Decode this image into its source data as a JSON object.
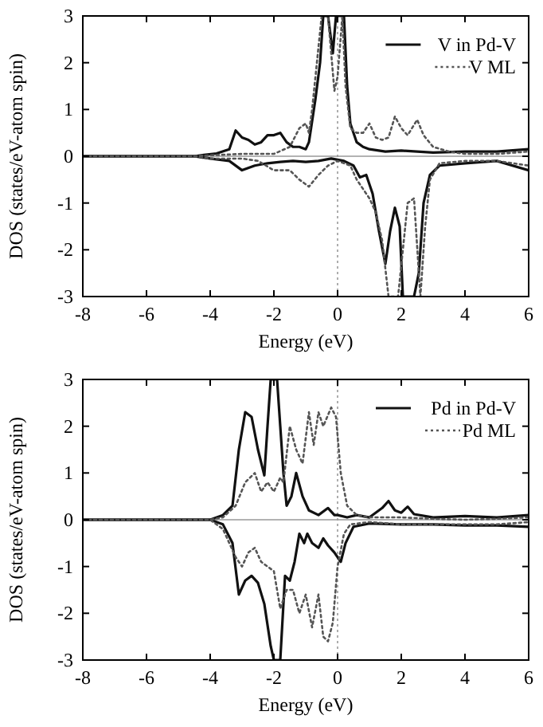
{
  "chart_data": [
    {
      "type": "line",
      "xlabel": "Energy (eV)",
      "ylabel": "DOS (states/eV-atom spin)",
      "xlim": [
        -8,
        6
      ],
      "ylim": [
        -3,
        3
      ],
      "xticks": [
        -8,
        -6,
        -4,
        -2,
        0,
        2,
        4,
        6
      ],
      "yticks": [
        -3,
        -2,
        -1,
        0,
        1,
        2,
        3
      ],
      "legend": "top right",
      "ref_lines": [
        {
          "axis": "x",
          "value": 0,
          "color": "#999999",
          "line_style": "dotted"
        },
        {
          "axis": "y",
          "value": 0,
          "color": "#999999",
          "line_style": "solid"
        }
      ],
      "series": [
        {
          "name": "V in Pd-V",
          "color": "#111111",
          "line_style": "solid",
          "x": [
            -8,
            -4.5,
            -4.2,
            -3.8,
            -3.4,
            -3.2,
            -3.0,
            -2.8,
            -2.6,
            -2.4,
            -2.2,
            -2.0,
            -1.8,
            -1.6,
            -1.4,
            -1.2,
            -1.0,
            -0.9,
            -0.7,
            -0.55,
            -0.45,
            -0.3,
            -0.15,
            -0.05,
            0.1,
            0.2,
            0.3,
            0.4,
            0.6,
            0.8,
            1.0,
            1.5,
            2.0,
            3,
            4,
            5,
            6
          ],
          "values": [
            0,
            0,
            0.03,
            0.06,
            0.15,
            0.55,
            0.4,
            0.35,
            0.25,
            0.3,
            0.45,
            0.45,
            0.5,
            0.3,
            0.2,
            0.2,
            0.15,
            0.3,
            1.2,
            2.0,
            3,
            3,
            2.2,
            3,
            3,
            3,
            1.5,
            0.7,
            0.3,
            0.2,
            0.15,
            0.1,
            0.12,
            0.08,
            0.1,
            0.1,
            0.15
          ]
        },
        {
          "color": "#111111",
          "line_style": "solid",
          "x": [
            -8,
            -4.5,
            -4,
            -3.4,
            -3.0,
            -2.6,
            -2.2,
            -1.8,
            -1.4,
            -1.0,
            -0.6,
            -0.2,
            0.2,
            0.5,
            0.7,
            0.9,
            1.1,
            1.3,
            1.5,
            1.65,
            1.8,
            1.95,
            2.05,
            2.4,
            2.55,
            2.7,
            2.9,
            3.2,
            4,
            5,
            6
          ],
          "values": [
            0,
            0,
            -0.05,
            -0.1,
            -0.3,
            -0.2,
            -0.15,
            -0.12,
            -0.1,
            -0.12,
            -0.1,
            -0.05,
            -0.1,
            -0.2,
            -0.45,
            -0.4,
            -0.8,
            -1.6,
            -2.3,
            -1.6,
            -1.1,
            -1.5,
            -3,
            -3,
            -2.5,
            -1.0,
            -0.4,
            -0.2,
            -0.15,
            -0.1,
            -0.3
          ]
        },
        {
          "name": "V ML",
          "color": "#555555",
          "line_style": "dotted",
          "x": [
            -8,
            -4.5,
            -4,
            -3,
            -2,
            -1.5,
            -1.2,
            -1.0,
            -0.9,
            -0.8,
            -0.65,
            -0.5,
            -0.3,
            -0.1,
            0.0,
            0.15,
            0.25,
            0.4,
            0.6,
            0.8,
            1.0,
            1.2,
            1.4,
            1.6,
            1.8,
            2.0,
            2.2,
            2.5,
            2.7,
            3.0,
            3.5,
            4,
            5,
            6
          ],
          "values": [
            0,
            0,
            0.02,
            0.05,
            0.05,
            0.2,
            0.6,
            0.7,
            0.5,
            1.0,
            2.0,
            3,
            3,
            1.4,
            1.7,
            3,
            1.5,
            0.6,
            0.5,
            0.5,
            0.7,
            0.4,
            0.35,
            0.4,
            0.85,
            0.6,
            0.45,
            0.78,
            0.45,
            0.2,
            0.1,
            0.05,
            0.05,
            0.1
          ]
        },
        {
          "color": "#555555",
          "line_style": "dotted",
          "x": [
            -8,
            -4.5,
            -4,
            -3,
            -2.5,
            -2,
            -1.5,
            -1.2,
            -0.9,
            -0.6,
            -0.3,
            0,
            0.4,
            0.6,
            0.8,
            1.0,
            1.2,
            1.4,
            1.6,
            1.9,
            2.05,
            2.2,
            2.4,
            2.6,
            2.75,
            2.9,
            3.2,
            4,
            5,
            6
          ],
          "values": [
            0,
            0,
            -0.05,
            -0.05,
            -0.1,
            -0.3,
            -0.3,
            -0.5,
            -0.65,
            -0.4,
            -0.2,
            -0.1,
            -0.2,
            -0.5,
            -0.7,
            -0.9,
            -1.2,
            -1.8,
            -3,
            -3,
            -2.0,
            -1.0,
            -0.9,
            -3,
            -1.5,
            -0.5,
            -0.15,
            -0.1,
            -0.1,
            -0.2
          ]
        }
      ]
    },
    {
      "type": "line",
      "xlabel": "Energy (eV)",
      "ylabel": "DOS (states/eV-atom spin)",
      "xlim": [
        -8,
        6
      ],
      "ylim": [
        -3,
        3
      ],
      "xticks": [
        -8,
        -6,
        -4,
        -2,
        0,
        2,
        4,
        6
      ],
      "yticks": [
        -3,
        -2,
        -1,
        0,
        1,
        2,
        3
      ],
      "legend": "top right",
      "ref_lines": [
        {
          "axis": "x",
          "value": 0,
          "color": "#999999",
          "line_style": "dotted"
        },
        {
          "axis": "y",
          "value": 0,
          "color": "#999999",
          "line_style": "solid"
        }
      ],
      "series": [
        {
          "name": "Pd in Pd-V",
          "color": "#111111",
          "line_style": "solid",
          "x": [
            -8,
            -4,
            -3.6,
            -3.3,
            -3.1,
            -2.9,
            -2.7,
            -2.5,
            -2.3,
            -2.2,
            -2.1,
            -1.9,
            -1.8,
            -1.7,
            -1.6,
            -1.45,
            -1.3,
            -1.1,
            -0.9,
            -0.6,
            -0.3,
            -0.1,
            0,
            0.3,
            0.6,
            1.0,
            1.4,
            1.6,
            1.8,
            2.0,
            2.2,
            2.4,
            3,
            4,
            5,
            6
          ],
          "values": [
            0,
            0,
            0.1,
            0.3,
            1.5,
            2.3,
            2.2,
            1.5,
            0.95,
            2.0,
            3,
            3,
            2.0,
            1.0,
            0.3,
            0.5,
            1.0,
            0.5,
            0.2,
            0.1,
            0.25,
            0.1,
            0.1,
            0.05,
            0.1,
            0.05,
            0.25,
            0.4,
            0.2,
            0.15,
            0.28,
            0.12,
            0.05,
            0.08,
            0.05,
            0.1
          ]
        },
        {
          "color": "#111111",
          "line_style": "solid",
          "x": [
            -8,
            -4,
            -3.6,
            -3.3,
            -3.1,
            -2.9,
            -2.7,
            -2.5,
            -2.3,
            -2.1,
            -2.0,
            -1.8,
            -1.65,
            -1.5,
            -1.35,
            -1.2,
            -1.05,
            -0.95,
            -0.8,
            -0.6,
            -0.45,
            -0.3,
            -0.1,
            0.1,
            0.25,
            0.5,
            1,
            2,
            3,
            4,
            5,
            6
          ],
          "values": [
            0,
            0,
            -0.1,
            -0.5,
            -1.6,
            -1.3,
            -1.2,
            -1.35,
            -1.8,
            -2.7,
            -3,
            -3,
            -1.2,
            -1.3,
            -0.9,
            -0.3,
            -0.5,
            -0.3,
            -0.5,
            -0.6,
            -0.4,
            -0.55,
            -0.7,
            -0.9,
            -0.5,
            -0.15,
            -0.08,
            -0.1,
            -0.1,
            -0.12,
            -0.12,
            -0.15
          ]
        },
        {
          "name": "Pd ML",
          "color": "#555555",
          "line_style": "dotted",
          "x": [
            -8,
            -4,
            -3.6,
            -3.2,
            -2.9,
            -2.6,
            -2.4,
            -2.2,
            -2.0,
            -1.8,
            -1.7,
            -1.5,
            -1.3,
            -1.1,
            -0.9,
            -0.75,
            -0.6,
            -0.45,
            -0.2,
            -0.05,
            0.1,
            0.3,
            0.6,
            1,
            2,
            3,
            4,
            5,
            6
          ],
          "values": [
            0,
            0,
            0.05,
            0.3,
            0.8,
            1.0,
            0.6,
            0.8,
            0.6,
            0.9,
            0.8,
            2.0,
            1.5,
            1.2,
            2.3,
            1.6,
            2.3,
            2.0,
            2.4,
            2.2,
            1.0,
            0.3,
            0.1,
            0.05,
            0.05,
            0.02,
            0,
            0.02,
            0.05
          ]
        },
        {
          "color": "#555555",
          "line_style": "dotted",
          "x": [
            -8,
            -4,
            -3.6,
            -3.4,
            -3.2,
            -3.0,
            -2.8,
            -2.6,
            -2.4,
            -2.2,
            -2.0,
            -1.8,
            -1.6,
            -1.4,
            -1.2,
            -1.0,
            -0.8,
            -0.6,
            -0.45,
            -0.3,
            -0.15,
            0,
            0.2,
            0.4,
            1,
            2,
            3,
            4,
            5,
            6
          ],
          "values": [
            0,
            0,
            -0.2,
            -0.5,
            -0.8,
            -1.0,
            -0.7,
            -0.6,
            -0.9,
            -1.0,
            -1.1,
            -1.9,
            -1.5,
            -1.5,
            -2.0,
            -1.6,
            -2.3,
            -1.6,
            -2.5,
            -2.6,
            -2.2,
            -1.0,
            -0.3,
            -0.1,
            -0.05,
            -0.1,
            -0.1,
            -0.1,
            -0.1,
            -0.05
          ]
        }
      ]
    }
  ]
}
